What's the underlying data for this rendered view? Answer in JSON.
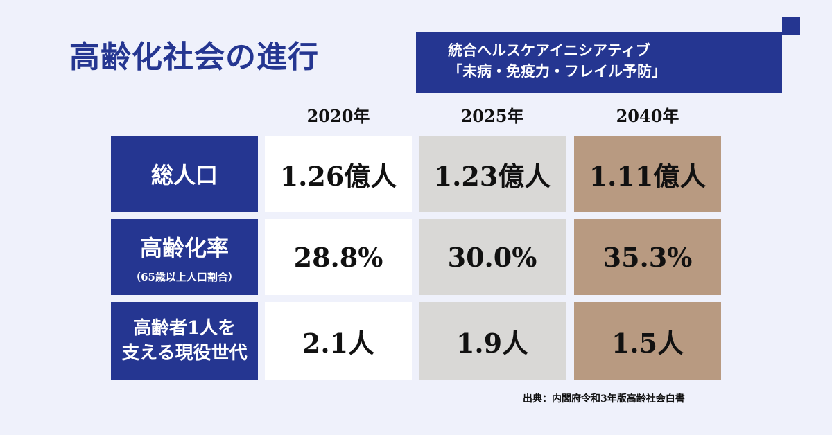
{
  "title": "高齢化社会の進行",
  "banner": {
    "line1": "統合ヘルスケアイニシアティブ",
    "line2": "「未病・免疫力・フレイル予防」"
  },
  "years": [
    "2020年",
    "2025年",
    "2040年"
  ],
  "rows": [
    {
      "label": "総人口",
      "values": [
        "1.26億人",
        "1.23億人",
        "1.11億人"
      ]
    },
    {
      "label": "高齢化率",
      "sublabel": "（65歳以上人口割合）",
      "values": [
        "28.8%",
        "30.0%",
        "35.3%"
      ]
    },
    {
      "label_line1": "高齢者1人を",
      "label_line2": "支える現役世代",
      "values": [
        "2.1人",
        "1.9人",
        "1.5人"
      ]
    }
  ],
  "source": "出典：内閣府令和3年版高齢社会白書",
  "colors": {
    "background": "#eff1fb",
    "navy": "#253691",
    "col_2020": "#ffffff",
    "col_2025": "#d9d8d6",
    "col_2040": "#b89a81"
  }
}
